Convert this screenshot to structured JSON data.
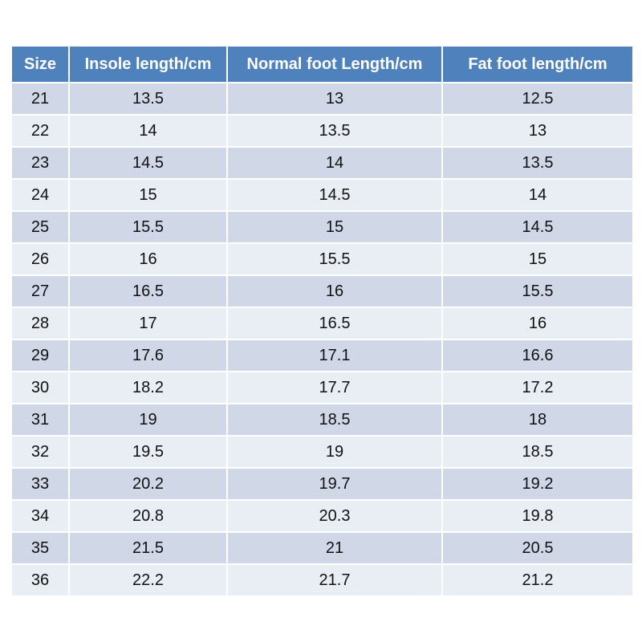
{
  "table": {
    "header": [
      "Size",
      "Insole length/cm",
      "Normal foot Length/cm",
      "Fat foot length/cm"
    ],
    "rows": [
      [
        "21",
        "13.5",
        "13",
        "12.5"
      ],
      [
        "22",
        "14",
        "13.5",
        "13"
      ],
      [
        "23",
        "14.5",
        "14",
        "13.5"
      ],
      [
        "24",
        "15",
        "14.5",
        "14"
      ],
      [
        "25",
        "15.5",
        "15",
        "14.5"
      ],
      [
        "26",
        "16",
        "15.5",
        "15"
      ],
      [
        "27",
        "16.5",
        "16",
        "15.5"
      ],
      [
        "28",
        "17",
        "16.5",
        "16"
      ],
      [
        "29",
        "17.6",
        "17.1",
        "16.6"
      ],
      [
        "30",
        "18.2",
        "17.7",
        "17.2"
      ],
      [
        "31",
        "19",
        "18.5",
        "18"
      ],
      [
        "32",
        "19.5",
        "19",
        "18.5"
      ],
      [
        "33",
        "20.2",
        "19.7",
        "19.2"
      ],
      [
        "34",
        "20.8",
        "20.3",
        "19.8"
      ],
      [
        "35",
        "21.5",
        "21",
        "20.5"
      ],
      [
        "36",
        "22.2",
        "21.7",
        "21.2"
      ]
    ]
  }
}
